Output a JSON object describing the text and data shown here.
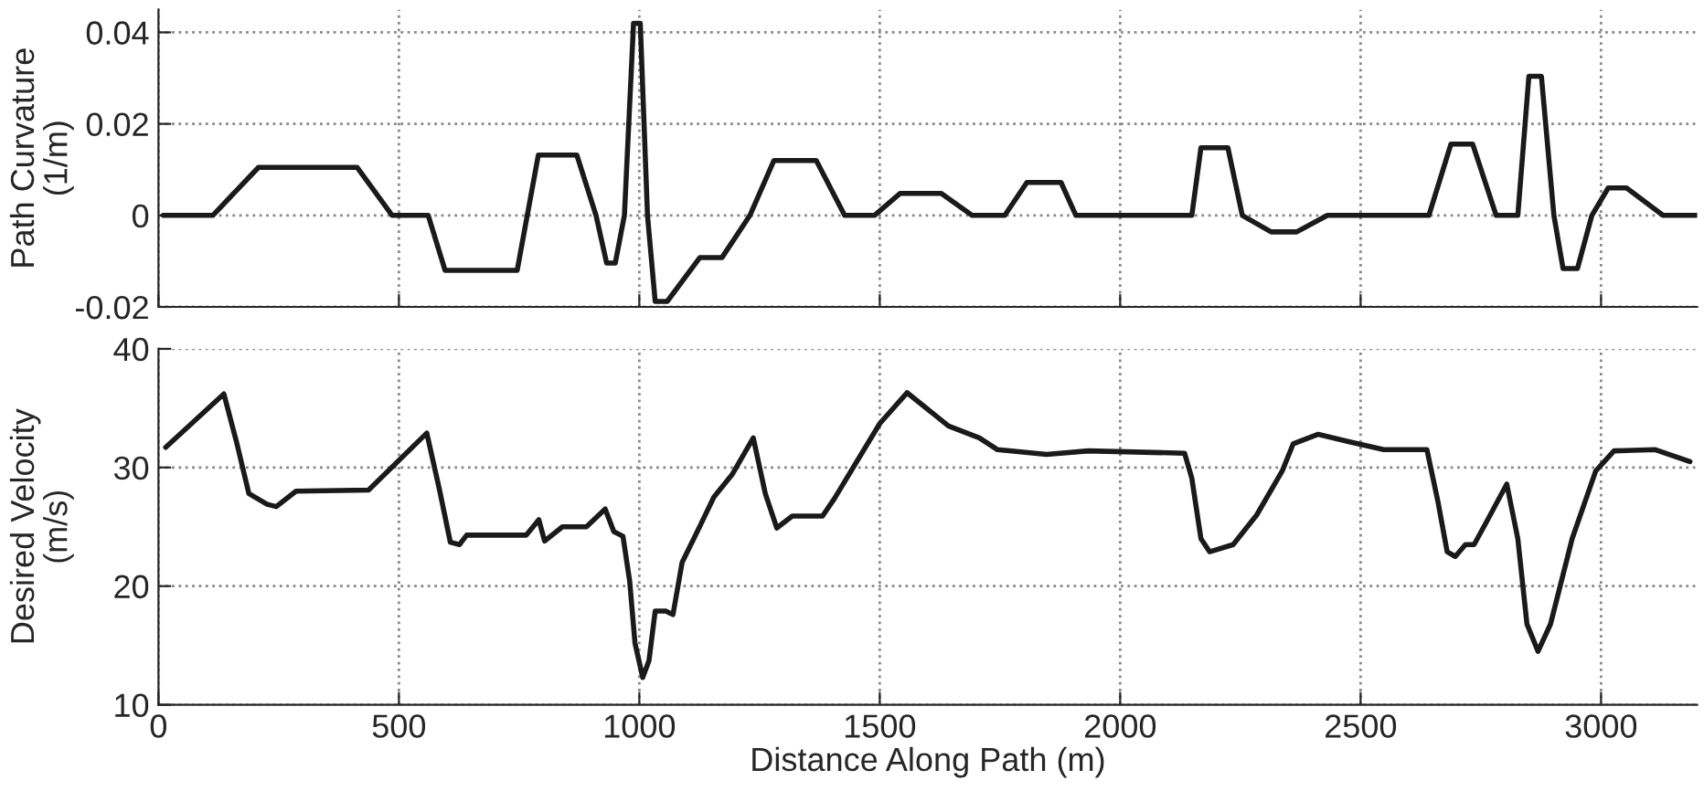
{
  "chart_data": [
    {
      "type": "line",
      "ylabel": "Path Curvature\n(1/m)",
      "xlim": [
        0,
        3200
      ],
      "xticks": [
        0,
        500,
        1000,
        1500,
        2000,
        2500,
        3000
      ],
      "ylim": [
        -0.02,
        0.045
      ],
      "yticks": [
        -0.02,
        0,
        0.02,
        0.04
      ],
      "grid": true,
      "tick_labels": "y",
      "legend": false,
      "series": [
        {
          "color": "#1a1a1a",
          "x": [
            10,
            113,
            208,
            413,
            486,
            561,
            596,
            746,
            790,
            870,
            910,
            932,
            950,
            969,
            988,
            1002,
            1017,
            1033,
            1058,
            1126,
            1172,
            1230,
            1280,
            1368,
            1427,
            1489,
            1542,
            1628,
            1692,
            1760,
            1806,
            1877,
            1908,
            2149,
            2168,
            2224,
            2254,
            2314,
            2367,
            2431,
            2642,
            2688,
            2733,
            2782,
            2827,
            2850,
            2876,
            2902,
            2921,
            2951,
            2981,
            3015,
            3053,
            3129,
            3200
          ],
          "values": [
            0,
            0,
            0.0105,
            0.0105,
            0,
            0,
            -0.012,
            -0.012,
            0.0132,
            0.0132,
            0,
            -0.0104,
            -0.0104,
            0,
            0.042,
            0.042,
            0,
            -0.0188,
            -0.0188,
            -0.0092,
            -0.0092,
            0,
            0.012,
            0.012,
            0,
            0,
            0.0048,
            0.0048,
            0,
            0,
            0.0072,
            0.0072,
            0,
            0,
            0.0148,
            0.0148,
            0,
            -0.0036,
            -0.0036,
            0,
            0,
            0.0156,
            0.0156,
            0,
            0,
            0.0304,
            0.0304,
            0,
            -0.0116,
            -0.0116,
            0,
            0.006,
            0.006,
            0,
            0
          ]
        }
      ]
    },
    {
      "type": "line",
      "xlabel": "Distance Along Path (m)",
      "ylabel": "Desired Velocity\n(m/s)",
      "xlim": [
        0,
        3200
      ],
      "xticks": [
        0,
        500,
        1000,
        1500,
        2000,
        2500,
        3000
      ],
      "ylim": [
        10,
        40
      ],
      "yticks": [
        10,
        20,
        30,
        40
      ],
      "grid": true,
      "legend": false,
      "series": [
        {
          "color": "#1a1a1a",
          "x": [
            15,
            136,
            162,
            188,
            226,
            245,
            286,
            437,
            558,
            584,
            607,
            626,
            641,
            765,
            791,
            803,
            840,
            890,
            929,
            947,
            966,
            980,
            991,
            1007,
            1020,
            1033,
            1055,
            1070,
            1089,
            1117,
            1155,
            1193,
            1237,
            1262,
            1286,
            1318,
            1381,
            1406,
            1500,
            1557,
            1643,
            1707,
            1745,
            1847,
            1934,
            2134,
            2149,
            2168,
            2186,
            2235,
            2284,
            2337,
            2360,
            2412,
            2473,
            2548,
            2638,
            2661,
            2680,
            2697,
            2718,
            2736,
            2763,
            2804,
            2827,
            2846,
            2869,
            2895,
            2940,
            2989,
            3027,
            3113,
            3185
          ],
          "values": [
            31.7,
            36.2,
            32.2,
            27.8,
            26.9,
            26.7,
            28.0,
            28.1,
            32.9,
            28.2,
            23.7,
            23.5,
            24.3,
            24.3,
            25.6,
            23.8,
            25.0,
            25.0,
            26.5,
            24.6,
            24.2,
            20.4,
            15.2,
            12.3,
            13.7,
            17.9,
            17.9,
            17.6,
            22.0,
            24.3,
            27.5,
            29.4,
            32.5,
            27.8,
            24.9,
            25.9,
            25.9,
            27.4,
            33.7,
            36.3,
            33.5,
            32.5,
            31.5,
            31.1,
            31.4,
            31.2,
            29.1,
            24.0,
            22.9,
            23.5,
            26.0,
            29.7,
            32.0,
            32.8,
            32.2,
            31.5,
            31.5,
            27.1,
            22.9,
            22.5,
            23.5,
            23.5,
            25.5,
            28.6,
            24.0,
            16.8,
            14.5,
            16.8,
            24.0,
            29.7,
            31.4,
            31.5,
            30.5
          ]
        }
      ]
    }
  ]
}
